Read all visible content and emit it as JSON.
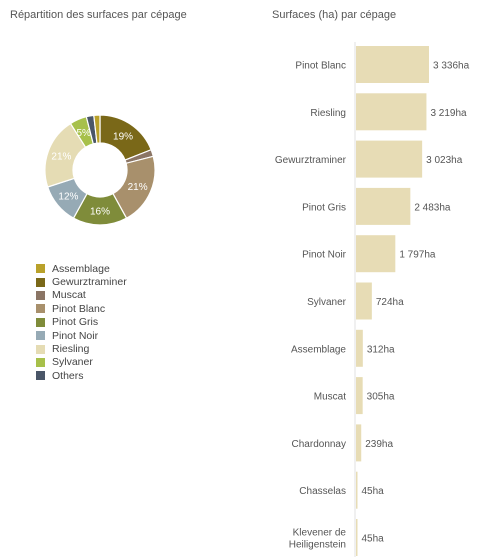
{
  "chart_data": [
    {
      "type": "pie",
      "title": "Répartition des surfaces par cépage",
      "colors": {
        "Assemblage": "#b9a12a",
        "Gewurztraminer": "#7a6818",
        "Muscat": "#8b7565",
        "Pinot Blanc": "#a8906c",
        "Pinot Gris": "#7f8c3a",
        "Pinot Noir": "#96aab5",
        "Riesling": "#e5dcb4",
        "Sylvaner": "#a7c04a",
        "Others": "#4a5668"
      },
      "slices": [
        {
          "name": "Gewurztraminer",
          "value": 19,
          "label": "19%"
        },
        {
          "name": "Muscat",
          "value": 2,
          "label": ""
        },
        {
          "name": "Pinot Blanc",
          "value": 21,
          "label": "21%"
        },
        {
          "name": "Pinot Gris",
          "value": 16,
          "label": "16%"
        },
        {
          "name": "Pinot Noir",
          "value": 12,
          "label": "12%"
        },
        {
          "name": "Riesling",
          "value": 21,
          "label": "21%"
        },
        {
          "name": "Sylvaner",
          "value": 5,
          "label": "5%"
        },
        {
          "name": "Others",
          "value": 2.2,
          "label": ""
        },
        {
          "name": "Assemblage",
          "value": 1.8,
          "label": ""
        }
      ],
      "legend": [
        "Assemblage",
        "Gewurztraminer",
        "Muscat",
        "Pinot Blanc",
        "Pinot Gris",
        "Pinot Noir",
        "Riesling",
        "Sylvaner",
        "Others"
      ]
    },
    {
      "type": "bar",
      "orientation": "horizontal",
      "title": "Surfaces (ha) par cépage",
      "bar_color": "#e7dcb5",
      "categories": [
        "Pinot Blanc",
        "Riesling",
        "Gewurztraminer",
        "Pinot Gris",
        "Pinot Noir",
        "Sylvaner",
        "Assemblage",
        "Muscat",
        "Chardonnay",
        "Chasselas",
        "Klevener de Heiligenstein"
      ],
      "values": [
        3336,
        3219,
        3023,
        2483,
        1797,
        724,
        312,
        305,
        239,
        45,
        45
      ],
      "value_labels": [
        "3 336ha",
        "3 219ha",
        "3 023ha",
        "2 483ha",
        "1 797ha",
        "724ha",
        "312ha",
        "305ha",
        "239ha",
        "45ha",
        "45ha"
      ]
    }
  ]
}
